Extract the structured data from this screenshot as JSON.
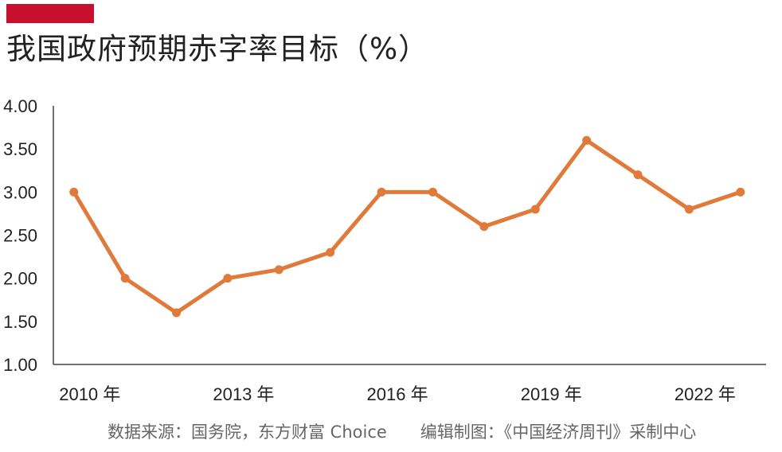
{
  "colors": {
    "accent": "#c8102e",
    "line": "#e07a3a",
    "axis": "#444444",
    "text": "#222222",
    "source": "#666666"
  },
  "chart_data": {
    "type": "line",
    "title": "我国政府预期赤字率目标（%）",
    "xlabel": "",
    "ylabel": "",
    "x": [
      2010,
      2011,
      2012,
      2013,
      2014,
      2015,
      2016,
      2017,
      2018,
      2019,
      2020,
      2021,
      2022,
      2023
    ],
    "x_tick_labels": [
      "2010 年",
      "2013 年",
      "2016 年",
      "2019 年",
      "2022 年"
    ],
    "x_tick_values": [
      2010,
      2013,
      2016,
      2019,
      2022
    ],
    "y_tick_labels": [
      "4.00",
      "3.50",
      "3.00",
      "2.50",
      "2.00",
      "1.50",
      "1.00"
    ],
    "y_tick_values": [
      4.0,
      3.5,
      3.0,
      2.5,
      2.0,
      1.5,
      1.0
    ],
    "ylim": [
      1.0,
      4.0
    ],
    "xlim": [
      2009.6,
      2023.5
    ],
    "grid": false,
    "series": [
      {
        "values": [
          3.0,
          2.0,
          1.6,
          2.0,
          2.1,
          2.3,
          3.0,
          3.0,
          2.6,
          2.8,
          3.6,
          3.2,
          2.8,
          3.0
        ]
      }
    ],
    "source": "数据来源：国务院，东方财富 Choice　　编辑制图：《中国经济周刊》采制中心"
  }
}
